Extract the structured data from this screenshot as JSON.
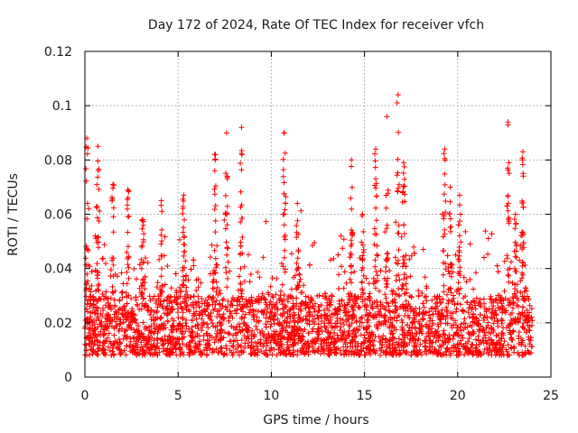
{
  "chart_data": {
    "type": "scatter",
    "title": "Day 172 of 2024, Rate Of TEC Index for receiver vfch",
    "xlabel": "GPS time / hours",
    "ylabel": "ROTI / TECUs",
    "xlim": [
      0,
      25
    ],
    "ylim": [
      0,
      0.12
    ],
    "x_ticks": [
      0,
      5,
      10,
      15,
      20,
      25
    ],
    "x_tick_labels": [
      "0",
      "5",
      "10",
      "15",
      "20",
      "25"
    ],
    "y_ticks": [
      0,
      0.02,
      0.04,
      0.06,
      0.08,
      0.1,
      0.12
    ],
    "y_tick_labels": [
      "0",
      "0.02",
      "0.04",
      "0.06",
      "0.08",
      "0.1",
      "0.12"
    ],
    "grid": true,
    "marker": "plus",
    "color": "#ff0000",
    "series": [
      {
        "name": "ROTI",
        "x_range": [
          0,
          24
        ],
        "baseline_band": [
          0.008,
          0.03
        ],
        "peaks": [
          {
            "x": 0.1,
            "y": 0.088
          },
          {
            "x": 0.7,
            "y": 0.085
          },
          {
            "x": 1.5,
            "y": 0.071
          },
          {
            "x": 2.3,
            "y": 0.069
          },
          {
            "x": 3.1,
            "y": 0.058
          },
          {
            "x": 4.1,
            "y": 0.065
          },
          {
            "x": 5.3,
            "y": 0.067
          },
          {
            "x": 7.0,
            "y": 0.082
          },
          {
            "x": 7.6,
            "y": 0.09
          },
          {
            "x": 8.4,
            "y": 0.092
          },
          {
            "x": 10.7,
            "y": 0.09
          },
          {
            "x": 11.4,
            "y": 0.064
          },
          {
            "x": 14.3,
            "y": 0.08
          },
          {
            "x": 14.9,
            "y": 0.06
          },
          {
            "x": 15.6,
            "y": 0.084
          },
          {
            "x": 16.2,
            "y": 0.096
          },
          {
            "x": 16.8,
            "y": 0.104
          },
          {
            "x": 17.1,
            "y": 0.079
          },
          {
            "x": 19.3,
            "y": 0.084
          },
          {
            "x": 19.6,
            "y": 0.07
          },
          {
            "x": 20.1,
            "y": 0.067
          },
          {
            "x": 22.7,
            "y": 0.094
          },
          {
            "x": 23.1,
            "y": 0.06
          },
          {
            "x": 23.5,
            "y": 0.083
          }
        ]
      }
    ]
  }
}
